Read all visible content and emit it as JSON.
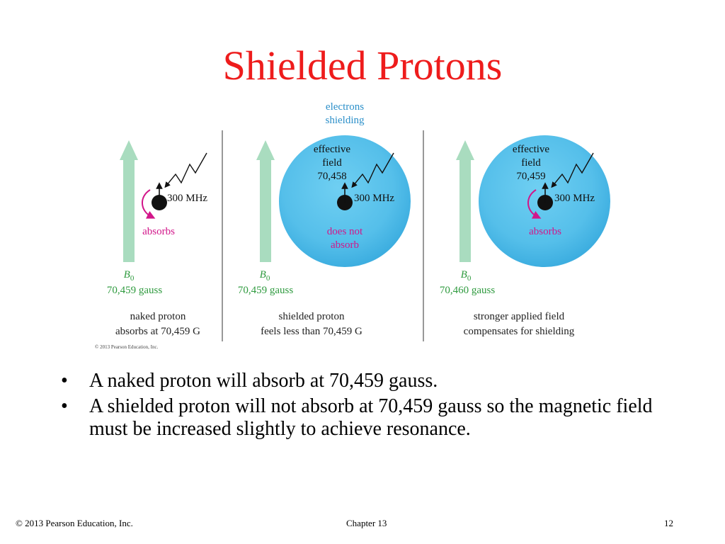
{
  "slide": {
    "title": "Shielded Protons",
    "bullet_glyph": "•",
    "bullets": [
      "A naked proton will absorb at 70,459 gauss.",
      "A shielded proton will not absorb at 70,459 gauss so the magnetic field must be increased slightly to achieve resonance."
    ]
  },
  "figure": {
    "electrons_label": [
      "electrons",
      "shielding"
    ],
    "panels": [
      {
        "field_symbol": "B",
        "field_subscript": "0",
        "field_value": "70,459 gauss",
        "freq_label": "300 MHz",
        "result_label": [
          "absorbs"
        ],
        "caption": [
          "naked proton",
          "absorbs at 70,459 G"
        ]
      },
      {
        "field_symbol": "B",
        "field_subscript": "0",
        "field_value": "70,459 gauss",
        "effective_label": [
          "effective",
          "field",
          "70,458"
        ],
        "freq_label": "300 MHz",
        "result_label": [
          "does not",
          "absorb"
        ],
        "caption": [
          "shielded proton",
          "feels less than 70,459 G"
        ]
      },
      {
        "field_symbol": "B",
        "field_subscript": "0",
        "field_value": "70,460 gauss",
        "effective_label": [
          "effective",
          "field",
          "70,459"
        ],
        "freq_label": "300 MHz",
        "result_label": [
          "absorbs"
        ],
        "caption": [
          "stronger applied field",
          "compensates for shielding"
        ]
      }
    ],
    "figure_copyright": "© 2013 Pearson Education, Inc.",
    "colors": {
      "title": "#ee1c1c",
      "field_arrow": "#a9dcbf",
      "electron_cloud": "#5bc3ec",
      "blue_label": "#2b8fc9",
      "magenta_label": "#d2168a",
      "green_label": "#2e9a3e"
    }
  },
  "footer": {
    "copyright": "© 2013 Pearson Education, Inc.",
    "chapter": "Chapter 13",
    "page": "12"
  }
}
